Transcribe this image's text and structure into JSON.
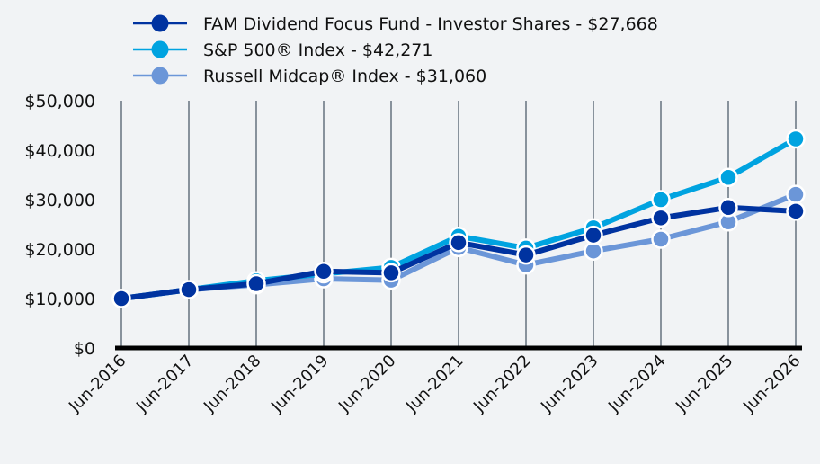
{
  "chart_data": {
    "type": "line",
    "categories": [
      "Jun-2016",
      "Jun-2017",
      "Jun-2018",
      "Jun-2019",
      "Jun-2020",
      "Jun-2021",
      "Jun-2022",
      "Jun-2023",
      "Jun-2024",
      "Jun-2025",
      "Jun-2026"
    ],
    "series": [
      {
        "name": "Russell Midcap® Index - $31,060",
        "color": "#6b96d8",
        "values": [
          10000,
          11800,
          12800,
          14000,
          13700,
          20300,
          16800,
          19600,
          22000,
          25500,
          31060
        ]
      },
      {
        "name": "S&P 500® Index - $42,271",
        "color": "#00a3e0",
        "values": [
          10000,
          11800,
          13600,
          15000,
          16300,
          22600,
          20200,
          24300,
          30000,
          34500,
          42271
        ]
      },
      {
        "name": "FAM Dividend Focus Fund - Investor Shares - $27,668",
        "color": "#0033a0",
        "values": [
          10000,
          11800,
          13000,
          15500,
          15200,
          21300,
          18800,
          22800,
          26300,
          28400,
          27668
        ]
      }
    ],
    "legend_order": [
      2,
      1,
      0
    ],
    "y_ticks": [
      "$0",
      "$10,000",
      "$20,000",
      "$30,000",
      "$40,000",
      "$50,000"
    ],
    "y_tick_values": [
      0,
      10000,
      20000,
      30000,
      40000,
      50000
    ],
    "ylim": [
      0,
      50000
    ],
    "grid": "vertical",
    "legend_position": "top"
  }
}
